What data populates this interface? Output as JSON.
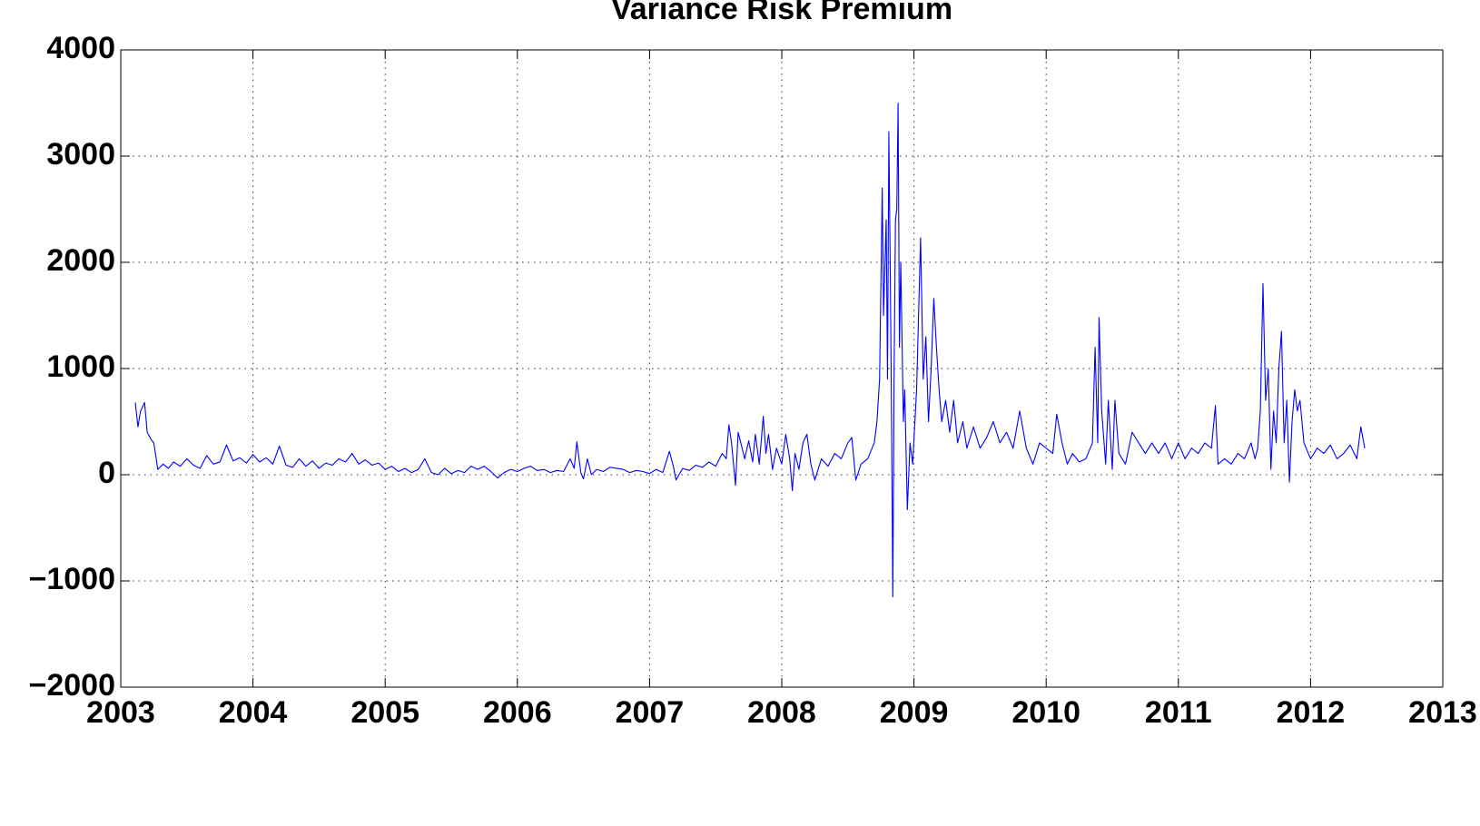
{
  "chart_data": {
    "type": "line",
    "title": "Variance Risk Premium",
    "x": [
      2003.11,
      2003.13,
      2003.15,
      2003.18,
      2003.2,
      2003.23,
      2003.25,
      2003.28,
      2003.32,
      2003.36,
      2003.4,
      2003.45,
      2003.5,
      2003.55,
      2003.6,
      2003.65,
      2003.7,
      2003.75,
      2003.8,
      2003.85,
      2003.9,
      2003.95,
      2004.0,
      2004.05,
      2004.1,
      2004.15,
      2004.2,
      2004.25,
      2004.3,
      2004.35,
      2004.4,
      2004.45,
      2004.5,
      2004.55,
      2004.6,
      2004.65,
      2004.7,
      2004.75,
      2004.8,
      2004.85,
      2004.9,
      2004.95,
      2005.0,
      2005.05,
      2005.1,
      2005.15,
      2005.2,
      2005.25,
      2005.3,
      2005.35,
      2005.4,
      2005.45,
      2005.5,
      2005.55,
      2005.6,
      2005.65,
      2005.7,
      2005.75,
      2005.8,
      2005.85,
      2005.9,
      2005.95,
      2006.0,
      2006.05,
      2006.1,
      2006.15,
      2006.2,
      2006.25,
      2006.3,
      2006.35,
      2006.4,
      2006.43,
      2006.45,
      2006.48,
      2006.5,
      2006.53,
      2006.56,
      2006.6,
      2006.65,
      2006.7,
      2006.75,
      2006.8,
      2006.85,
      2006.9,
      2006.95,
      2007.0,
      2007.05,
      2007.1,
      2007.15,
      2007.18,
      2007.2,
      2007.25,
      2007.3,
      2007.35,
      2007.4,
      2007.45,
      2007.5,
      2007.55,
      2007.58,
      2007.6,
      2007.62,
      2007.65,
      2007.67,
      2007.7,
      2007.72,
      2007.75,
      2007.78,
      2007.8,
      2007.83,
      2007.86,
      2007.88,
      2007.9,
      2007.93,
      2007.96,
      2008.0,
      2008.03,
      2008.06,
      2008.08,
      2008.1,
      2008.13,
      2008.16,
      2008.19,
      2008.22,
      2008.25,
      2008.3,
      2008.35,
      2008.4,
      2008.45,
      2008.5,
      2008.53,
      2008.56,
      2008.6,
      2008.65,
      2008.7,
      2008.72,
      2008.74,
      2008.76,
      2008.77,
      2008.79,
      2008.8,
      2008.81,
      2008.82,
      2008.83,
      2008.84,
      2008.85,
      2008.86,
      2008.87,
      2008.88,
      2008.89,
      2008.9,
      2008.92,
      2008.93,
      2008.95,
      2008.97,
      2008.99,
      2009.02,
      2009.05,
      2009.07,
      2009.09,
      2009.11,
      2009.13,
      2009.15,
      2009.17,
      2009.19,
      2009.21,
      2009.24,
      2009.27,
      2009.3,
      2009.33,
      2009.37,
      2009.4,
      2009.45,
      2009.5,
      2009.55,
      2009.6,
      2009.65,
      2009.7,
      2009.75,
      2009.8,
      2009.85,
      2009.9,
      2009.95,
      2010.0,
      2010.05,
      2010.08,
      2010.12,
      2010.16,
      2010.2,
      2010.25,
      2010.3,
      2010.35,
      2010.37,
      2010.39,
      2010.4,
      2010.42,
      2010.45,
      2010.47,
      2010.5,
      2010.52,
      2010.55,
      2010.6,
      2010.65,
      2010.7,
      2010.75,
      2010.8,
      2010.85,
      2010.9,
      2010.95,
      2011.0,
      2011.05,
      2011.1,
      2011.15,
      2011.2,
      2011.25,
      2011.28,
      2011.3,
      2011.35,
      2011.4,
      2011.45,
      2011.5,
      2011.55,
      2011.58,
      2011.6,
      2011.62,
      2011.64,
      2011.66,
      2011.68,
      2011.7,
      2011.72,
      2011.74,
      2011.76,
      2011.78,
      2011.8,
      2011.82,
      2011.84,
      2011.86,
      2011.88,
      2011.9,
      2011.92,
      2011.95,
      2012.0,
      2012.05,
      2012.1,
      2012.15,
      2012.2,
      2012.25,
      2012.3,
      2012.35,
      2012.38,
      2012.41
    ],
    "values": [
      680,
      450,
      600,
      680,
      400,
      330,
      300,
      50,
      100,
      60,
      120,
      80,
      150,
      90,
      60,
      180,
      100,
      120,
      280,
      130,
      160,
      110,
      190,
      120,
      160,
      100,
      270,
      90,
      70,
      150,
      80,
      130,
      60,
      110,
      90,
      150,
      120,
      200,
      100,
      140,
      90,
      110,
      50,
      80,
      30,
      60,
      20,
      50,
      150,
      20,
      0,
      60,
      10,
      40,
      20,
      80,
      50,
      80,
      30,
      -30,
      20,
      50,
      30,
      60,
      80,
      40,
      50,
      20,
      40,
      30,
      150,
      60,
      310,
      20,
      -40,
      150,
      0,
      50,
      30,
      70,
      60,
      50,
      20,
      40,
      30,
      10,
      50,
      20,
      220,
      80,
      -50,
      60,
      40,
      90,
      70,
      120,
      80,
      200,
      150,
      470,
      300,
      -100,
      400,
      250,
      150,
      320,
      120,
      380,
      100,
      550,
      200,
      380,
      50,
      250,
      100,
      380,
      150,
      -150,
      200,
      50,
      300,
      380,
      100,
      -50,
      150,
      80,
      200,
      150,
      300,
      350,
      -50,
      100,
      150,
      300,
      500,
      900,
      2700,
      1500,
      2400,
      900,
      3230,
      2000,
      600,
      -1150,
      1000,
      2400,
      2500,
      3500,
      1200,
      2000,
      500,
      800,
      -330,
      300,
      100,
      800,
      2230,
      900,
      1300,
      500,
      1000,
      1660,
      1200,
      800,
      500,
      700,
      400,
      700,
      300,
      500,
      250,
      450,
      250,
      350,
      500,
      300,
      400,
      250,
      600,
      250,
      100,
      300,
      250,
      200,
      570,
      300,
      100,
      200,
      120,
      150,
      300,
      1200,
      300,
      1480,
      600,
      100,
      700,
      50,
      700,
      200,
      100,
      400,
      300,
      200,
      300,
      200,
      300,
      150,
      300,
      150,
      250,
      200,
      300,
      250,
      650,
      100,
      150,
      100,
      200,
      150,
      300,
      150,
      250,
      600,
      1800,
      700,
      1000,
      50,
      600,
      300,
      1000,
      1350,
      300,
      700,
      -70,
      500,
      800,
      600,
      700,
      300,
      150,
      250,
      200,
      280,
      150,
      200,
      280,
      150,
      450,
      250
    ],
    "color": "#0000ff",
    "xlim": [
      2003,
      2013
    ],
    "xticks": [
      2003,
      2004,
      2005,
      2006,
      2007,
      2008,
      2009,
      2010,
      2011,
      2012,
      2013
    ],
    "ylim": [
      -2000,
      4000
    ],
    "yticks": [
      {
        "value": -2000,
        "label": "−2000"
      },
      {
        "value": -1000,
        "label": "−1000"
      },
      0,
      1000,
      2000,
      3000,
      4000
    ],
    "grid": true
  }
}
